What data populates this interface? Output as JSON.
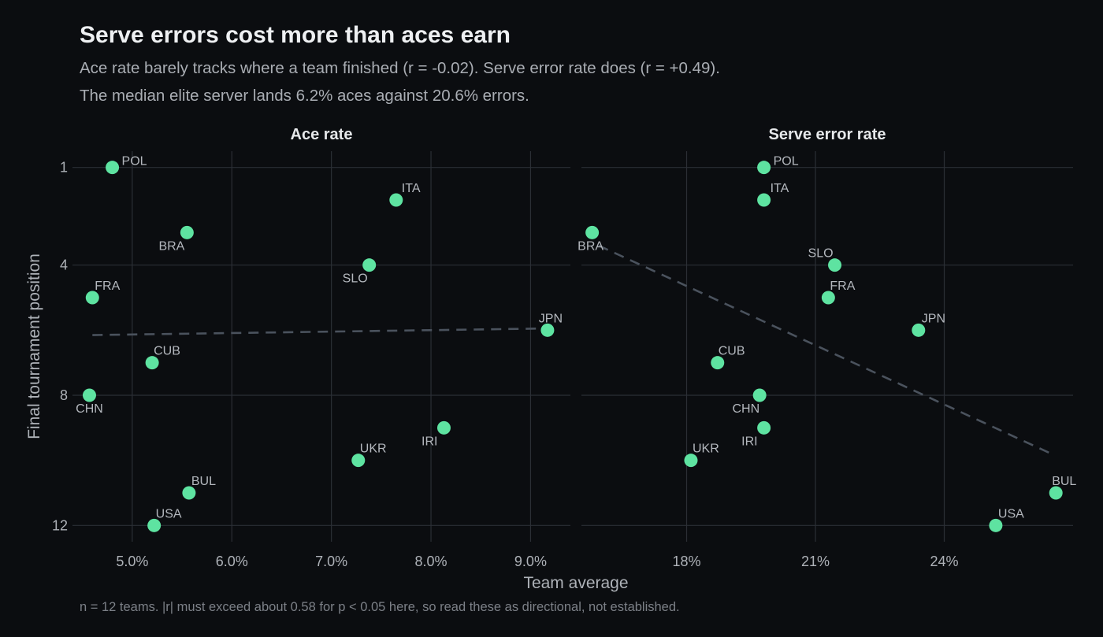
{
  "title": "Serve errors cost more than aces earn",
  "subtitle_lines": [
    "Ace rate barely tracks where a team finished (r = -0.02). Serve error rate does (r = +0.49).",
    "The median elite server lands 6.2% aces against 20.6% errors."
  ],
  "caption": "n = 12 teams. |r| must exceed about 0.58 for p < 0.05 here, so read these as directional, not established.",
  "colors": {
    "background": "#0b0d10",
    "point": "#5ee3a1",
    "gridline": "#2b2f35",
    "trend": "#4a525d",
    "text": "#aeb2b8"
  },
  "chart_data": {
    "type": "scatter",
    "xlabel": "Team average",
    "ylabel": "Final tournament position",
    "y_reversed": true,
    "ylim": [
      0.5,
      12.5
    ],
    "y_ticks": [
      1,
      4,
      8,
      12
    ],
    "y_tick_labels": [
      "1",
      "4",
      "8",
      "12"
    ],
    "grid": true,
    "trendline": "dashed linear fit",
    "panels": [
      {
        "title": "Ace rate",
        "xlim": [
          4.4,
          9.4
        ],
        "x_ticks": [
          5,
          6,
          7,
          8,
          9
        ],
        "x_tick_labels": [
          "5.0%",
          "6.0%",
          "7.0%",
          "8.0%",
          "9.0%"
        ],
        "trend": {
          "x": [
            4.6,
            9.1
          ],
          "y": [
            6.15,
            5.95
          ]
        },
        "points": [
          {
            "team": "POL",
            "x": 4.8,
            "y": 1
          },
          {
            "team": "ITA",
            "x": 7.65,
            "y": 2
          },
          {
            "team": "BRA",
            "x": 5.55,
            "y": 3
          },
          {
            "team": "SLO",
            "x": 7.38,
            "y": 4
          },
          {
            "team": "FRA",
            "x": 4.6,
            "y": 5
          },
          {
            "team": "JPN",
            "x": 9.17,
            "y": 6
          },
          {
            "team": "CUB",
            "x": 5.2,
            "y": 7
          },
          {
            "team": "CHN",
            "x": 4.57,
            "y": 8
          },
          {
            "team": "IRI",
            "x": 8.13,
            "y": 9
          },
          {
            "team": "UKR",
            "x": 7.27,
            "y": 10
          },
          {
            "team": "BUL",
            "x": 5.57,
            "y": 11
          },
          {
            "team": "USA",
            "x": 5.22,
            "y": 12
          }
        ]
      },
      {
        "title": "Serve error rate",
        "xlim": [
          15.55,
          27.0
        ],
        "x_ticks": [
          18,
          21,
          24
        ],
        "x_tick_labels": [
          "18%",
          "21%",
          "24%"
        ],
        "trend": {
          "x": [
            15.95,
            26.5
          ],
          "y": [
            3.4,
            9.8
          ]
        },
        "points": [
          {
            "team": "POL",
            "x": 19.8,
            "y": 1
          },
          {
            "team": "ITA",
            "x": 19.8,
            "y": 2
          },
          {
            "team": "BRA",
            "x": 15.8,
            "y": 3
          },
          {
            "team": "SLO",
            "x": 21.45,
            "y": 4
          },
          {
            "team": "FRA",
            "x": 21.3,
            "y": 5
          },
          {
            "team": "JPN",
            "x": 23.4,
            "y": 6
          },
          {
            "team": "CUB",
            "x": 18.72,
            "y": 7
          },
          {
            "team": "CHN",
            "x": 19.7,
            "y": 8
          },
          {
            "team": "IRI",
            "x": 19.8,
            "y": 9
          },
          {
            "team": "UKR",
            "x": 18.1,
            "y": 10
          },
          {
            "team": "BUL",
            "x": 26.6,
            "y": 11
          },
          {
            "team": "USA",
            "x": 25.2,
            "y": 12
          }
        ]
      }
    ]
  }
}
